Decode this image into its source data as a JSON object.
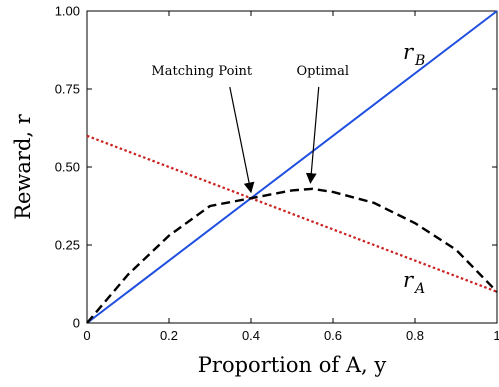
{
  "chart_data": {
    "type": "line",
    "xlabel": "Proportion of A, y",
    "ylabel": "Reward, r",
    "xlim": [
      0,
      1
    ],
    "ylim": [
      0,
      1
    ],
    "x_ticks": [
      "0",
      "0.2",
      "0.4",
      "0.6",
      "0.8",
      "1"
    ],
    "y_ticks": [
      "0",
      "0.25",
      "0.50",
      "0.75",
      "1.00"
    ],
    "grid": false,
    "series": [
      {
        "name": "r_B",
        "label_main": "r",
        "label_sub": "B",
        "style": "solid",
        "color": "#1f4fe0",
        "x": [
          0,
          1
        ],
        "y": [
          0,
          1
        ]
      },
      {
        "name": "r_A",
        "label_main": "r",
        "label_sub": "A",
        "style": "dotted",
        "color": "#cc2020",
        "x": [
          0,
          1
        ],
        "y": [
          0.6,
          0.1
        ]
      },
      {
        "style": "dashed",
        "color": "#000000",
        "x": [
          0,
          0.1,
          0.2,
          0.3,
          0.4,
          0.5,
          0.55,
          0.6,
          0.7,
          0.8,
          0.9,
          1.0
        ],
        "y": [
          0,
          0.155,
          0.28,
          0.375,
          0.4,
          0.425,
          0.43,
          0.42,
          0.385,
          0.32,
          0.235,
          0.1
        ]
      }
    ],
    "annotations": [
      {
        "text": "Matching Point",
        "text_x": 0.28,
        "text_y": 0.795,
        "target_x": 0.4,
        "target_y": 0.4
      },
      {
        "text": "Optimal",
        "text_x": 0.575,
        "text_y": 0.795,
        "target_x": 0.545,
        "target_y": 0.43
      }
    ]
  }
}
